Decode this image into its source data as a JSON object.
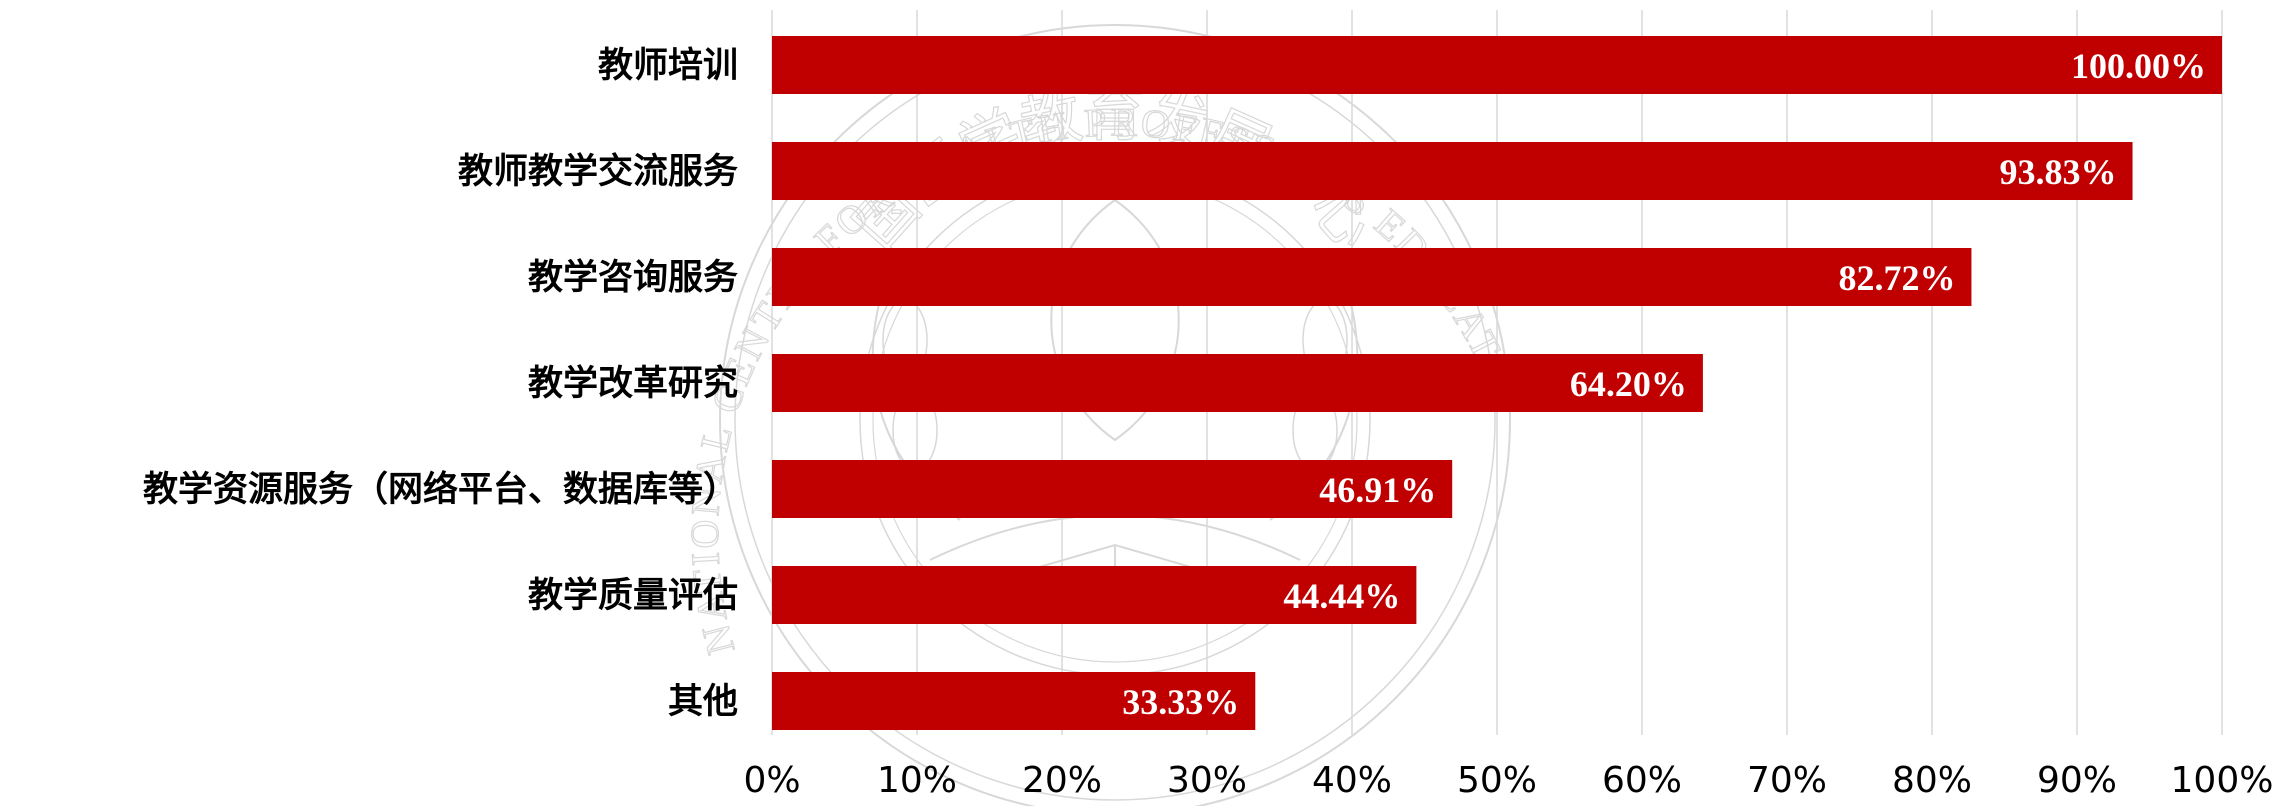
{
  "chart_data": {
    "type": "bar",
    "orientation": "horizontal",
    "categories": [
      "教师培训",
      "教师教学交流服务",
      "教学咨询服务",
      "教学改革研究",
      "教学资源服务（网络平台、数据库等）",
      "教学质量评估",
      "其他"
    ],
    "values": [
      100.0,
      93.83,
      82.72,
      64.2,
      46.91,
      44.44,
      33.33
    ],
    "data_labels": [
      "100.00%",
      "93.83%",
      "82.72%",
      "64.20%",
      "46.91%",
      "44.44%",
      "33.33%"
    ],
    "x_ticks": [
      "0%",
      "10%",
      "20%",
      "30%",
      "40%",
      "50%",
      "60%",
      "70%",
      "80%",
      "90%",
      "100%"
    ],
    "xlim": [
      0,
      100
    ],
    "bar_color": "#c00000",
    "grid": true,
    "legend": "none",
    "title": "",
    "xlabel": "",
    "ylabel": ""
  },
  "watermark": {
    "text_cn": "国医学教育发展中心",
    "text_en": "NATIONAL CENTER FOR HEALTH PROFESSIONS EDUCATION DEVELOPMENT",
    "color": "#d8d8d8"
  }
}
